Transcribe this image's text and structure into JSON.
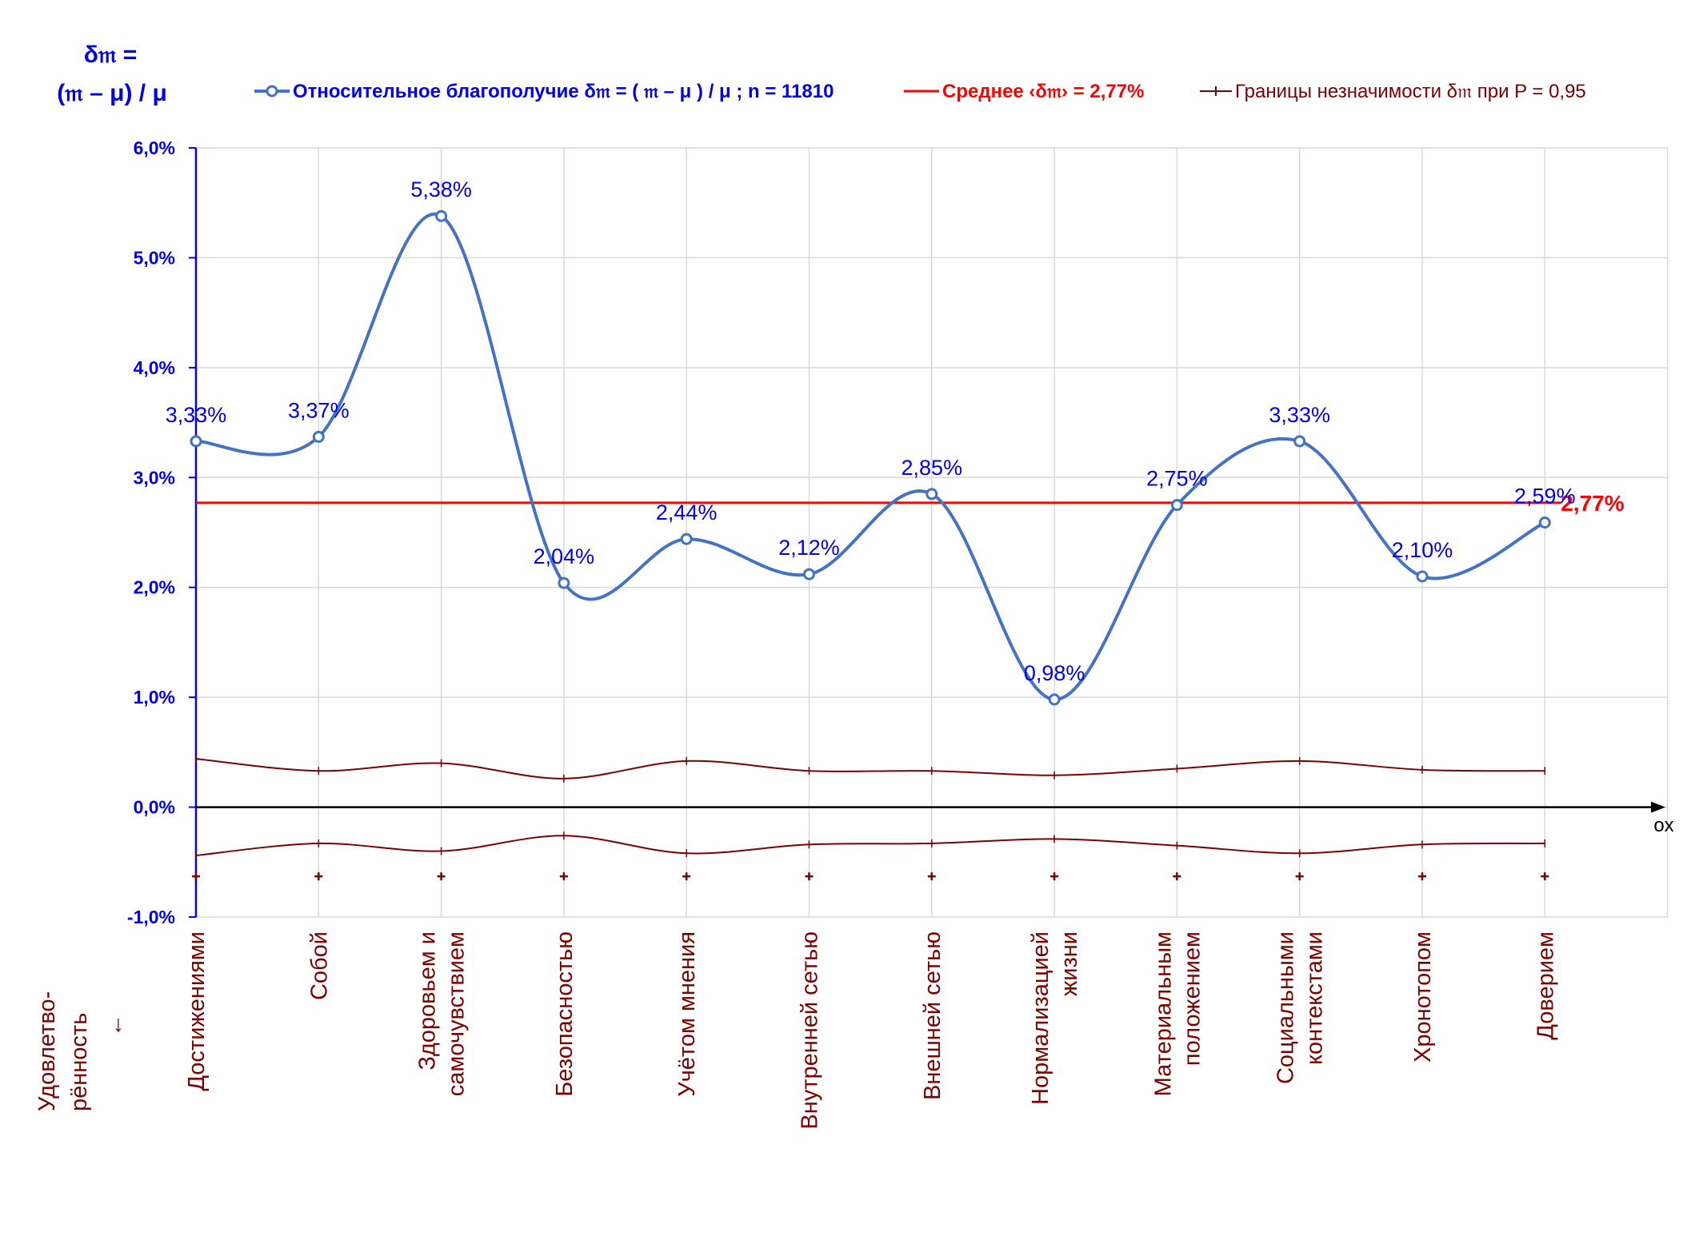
{
  "chart_data": {
    "type": "line",
    "y_axis_title_line1": "δ𝔪 =",
    "y_axis_title_line2": "(𝔪 – μ) / μ",
    "x_axis_label": "Удовлетво-\nрённость\n↓",
    "axis_arrow_label": "ox",
    "categories": [
      "Достижениями",
      "Собой",
      "Здоровьем и\nсамочувствием",
      "Безопасностью",
      "Учётом мнения",
      "Внутренней сетью",
      "Внешней сетью",
      "Нормализацией\nжизни",
      "Материальным\nположением",
      "Социальными\nконтекстами",
      "Хронотопом",
      "Доверием"
    ],
    "ylim": [
      -1.0,
      6.0
    ],
    "y_ticks": [
      -1.0,
      0.0,
      1.0,
      2.0,
      3.0,
      4.0,
      5.0,
      6.0
    ],
    "y_tick_labels": [
      "-1,0%",
      "0,0%",
      "1,0%",
      "2,0%",
      "3,0%",
      "4,0%",
      "5,0%",
      "6,0%"
    ],
    "grid": true,
    "legend_position": "top",
    "series": [
      {
        "name": "Относительное благополучие δ𝔪 = ( 𝔪 – μ ) / μ ; n = 11810",
        "values": [
          3.33,
          3.37,
          5.38,
          2.04,
          2.44,
          2.12,
          2.85,
          0.98,
          2.75,
          3.33,
          2.1,
          2.59
        ],
        "labels": [
          "3,33%",
          "3,37%",
          "5,38%",
          "2,04%",
          "2,44%",
          "2,12%",
          "2,85%",
          "0,98%",
          "2,75%",
          "3,33%",
          "2,10%",
          "2,59%"
        ],
        "color": "#4472C4",
        "smooth": true
      },
      {
        "name": "Среднее ‹δ𝔪› = 2,77%",
        "value": 2.77,
        "end_label": "2,77%",
        "color": "#FF0000"
      },
      {
        "name": "Границы незначимости δ𝔪 при P = 0,95",
        "upper": [
          0.44,
          0.33,
          0.4,
          0.26,
          0.42,
          0.33,
          0.33,
          0.29,
          0.35,
          0.42,
          0.34,
          0.33
        ],
        "lower": [
          -0.44,
          -0.33,
          -0.4,
          -0.26,
          -0.42,
          -0.34,
          -0.33,
          -0.29,
          -0.35,
          -0.42,
          -0.34,
          -0.33
        ],
        "marker_row": -0.63,
        "color": "#7B0000"
      }
    ],
    "colors": {
      "axis_text": "#0000EE",
      "category_text": "#7B0000",
      "grid": "#D9D9D9",
      "zero_axis": "#000000"
    }
  }
}
